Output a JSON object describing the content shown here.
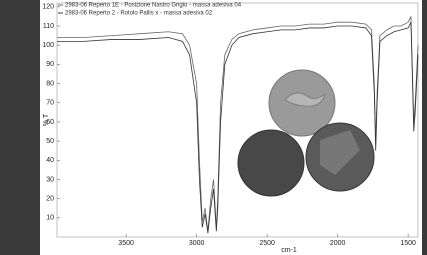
{
  "chart_data": {
    "type": "line",
    "x_label": "cm-1",
    "y_label": "% T",
    "x": [
      3990,
      3800,
      3600,
      3400,
      3200,
      3100,
      3050,
      3000,
      2980,
      2960,
      2940,
      2920,
      2900,
      2880,
      2860,
      2850,
      2830,
      2800,
      2750,
      2700,
      2600,
      2500,
      2400,
      2300,
      2200,
      2100,
      2000,
      1900,
      1800,
      1760,
      1740,
      1730,
      1720,
      1700,
      1650,
      1600,
      1550,
      1500,
      1480,
      1460,
      1450,
      1430
    ],
    "series": [
      {
        "name": "2983-06 Reperto 1E - Posizione Nastro Grigio - massa adesiva 04",
        "color": "#666666",
        "values": [
          104,
          104,
          105,
          106,
          107,
          106,
          100,
          80,
          40,
          8,
          15,
          3,
          20,
          30,
          5,
          20,
          70,
          95,
          103,
          106,
          108,
          109,
          110,
          110,
          111,
          111,
          112,
          112,
          111,
          108,
          80,
          50,
          75,
          105,
          108,
          110,
          110,
          112,
          115,
          60,
          70,
          100
        ]
      },
      {
        "name": "2983-06 Reperto 2 - Rotolo Pallis x - massa adesiva 02",
        "color": "#333333",
        "values": [
          102,
          102,
          103,
          103,
          104,
          102,
          95,
          70,
          30,
          5,
          12,
          2,
          15,
          25,
          3,
          15,
          60,
          90,
          100,
          104,
          106,
          107,
          108,
          108,
          109,
          109,
          110,
          110,
          109,
          105,
          75,
          45,
          70,
          102,
          105,
          107,
          108,
          109,
          112,
          55,
          65,
          95
        ]
      }
    ],
    "xlim": [
      3990,
      1430
    ],
    "ylim": [
      0,
      122
    ],
    "xticks": [
      3500,
      3000,
      2500,
      2000,
      1500
    ],
    "yticks": [
      10,
      20,
      30,
      40,
      50,
      60,
      70,
      80,
      90,
      100,
      110,
      120
    ]
  }
}
